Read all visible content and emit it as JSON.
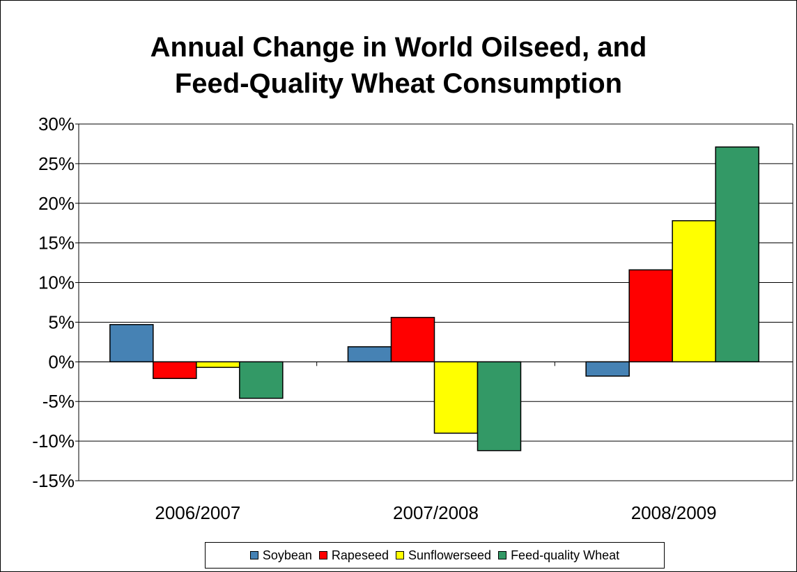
{
  "chart_data": {
    "type": "bar",
    "title_lines": [
      "Annual Change in World Oilseed, and",
      "Feed-Quality Wheat Consumption"
    ],
    "categories": [
      "2006/2007",
      "2007/2008",
      "2008/2009"
    ],
    "series": [
      {
        "name": "Soybean",
        "color": "#4682B4",
        "values": [
          4.7,
          1.9,
          -1.8
        ]
      },
      {
        "name": "Rapeseed",
        "color": "#FF0000",
        "values": [
          -2.1,
          5.6,
          11.6
        ]
      },
      {
        "name": "Sunflowerseed",
        "color": "#FFFF00",
        "values": [
          -0.7,
          -9.0,
          17.8
        ]
      },
      {
        "name": "Feed-quality Wheat",
        "color": "#339966",
        "values": [
          -4.6,
          -11.2,
          27.1
        ]
      }
    ],
    "ylim": [
      -15,
      30
    ],
    "yticks": [
      30,
      25,
      20,
      15,
      10,
      5,
      0,
      -5,
      -10,
      -15
    ],
    "ytick_labels": [
      "30%",
      "25%",
      "20%",
      "15%",
      "10%",
      "5%",
      "0%",
      "-5%",
      "-10%",
      "-15%"
    ],
    "xlabel": "",
    "ylabel": "",
    "grid": true,
    "legend_position": "bottom"
  }
}
